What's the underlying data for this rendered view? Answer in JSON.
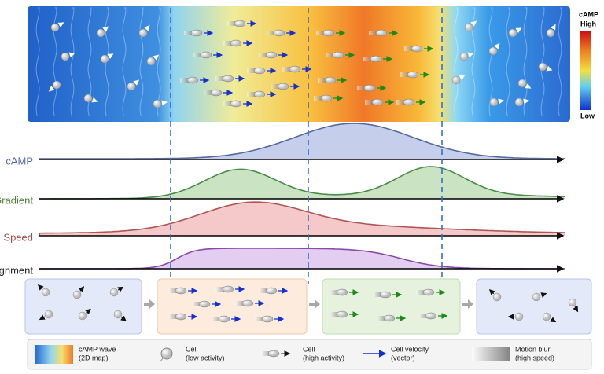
{
  "colorbar": {
    "title": "cAMP",
    "high": "High",
    "low": "Low"
  },
  "profiles": [
    {
      "label": "cAMP"
    },
    {
      "label": "Gradient"
    },
    {
      "label": "Speed"
    },
    {
      "label": "Alignment"
    }
  ],
  "legend": [
    {
      "lines": [
        "cAMP wave",
        "(2D map)"
      ]
    },
    {
      "lines": [
        "Cell",
        "(low activity)"
      ]
    },
    {
      "lines": [
        "Cell",
        "(high activity)"
      ]
    },
    {
      "lines": [
        "Cell velocity",
        "(vector)"
      ]
    },
    {
      "lines": [
        "Motion blur",
        "(high speed)"
      ]
    }
  ]
}
